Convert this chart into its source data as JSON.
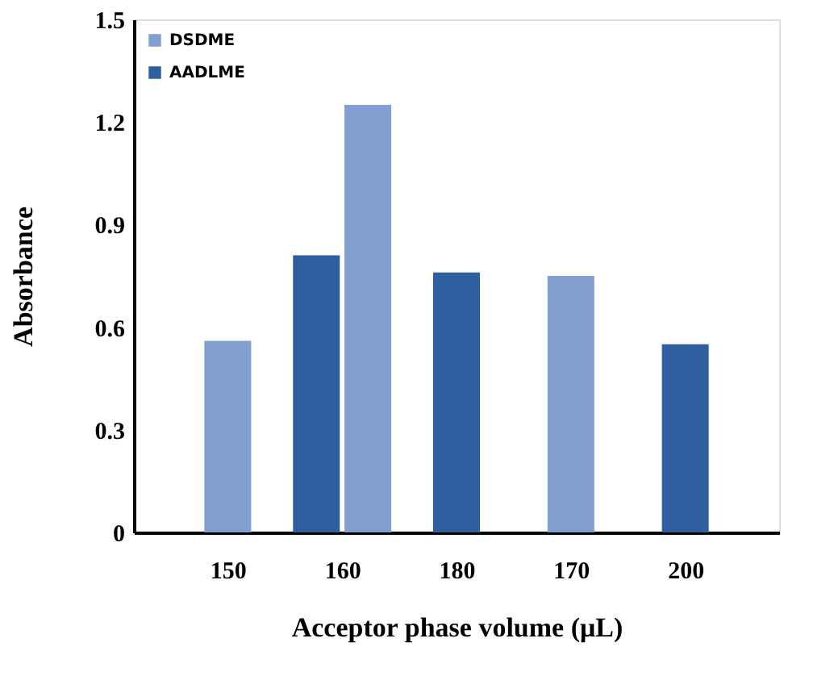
{
  "chart_data": {
    "type": "bar",
    "xlabel": "Acceptor phase volume (μL)",
    "ylabel": "Absorbance",
    "categories": [
      "150",
      "160",
      "180",
      "170",
      "200"
    ],
    "series": [
      {
        "name": "DSDME",
        "color": "#819fd0",
        "values": [
          0.56,
          1.25,
          null,
          0.75,
          null
        ]
      },
      {
        "name": "AADLME",
        "color": "#2f5f9f",
        "values": [
          null,
          0.81,
          0.76,
          null,
          0.55
        ]
      }
    ],
    "ylim": [
      0,
      1.5
    ],
    "yticks": [
      0,
      0.3,
      0.6,
      0.9,
      1.2,
      1.5
    ],
    "grid": false,
    "legend": "top left"
  }
}
